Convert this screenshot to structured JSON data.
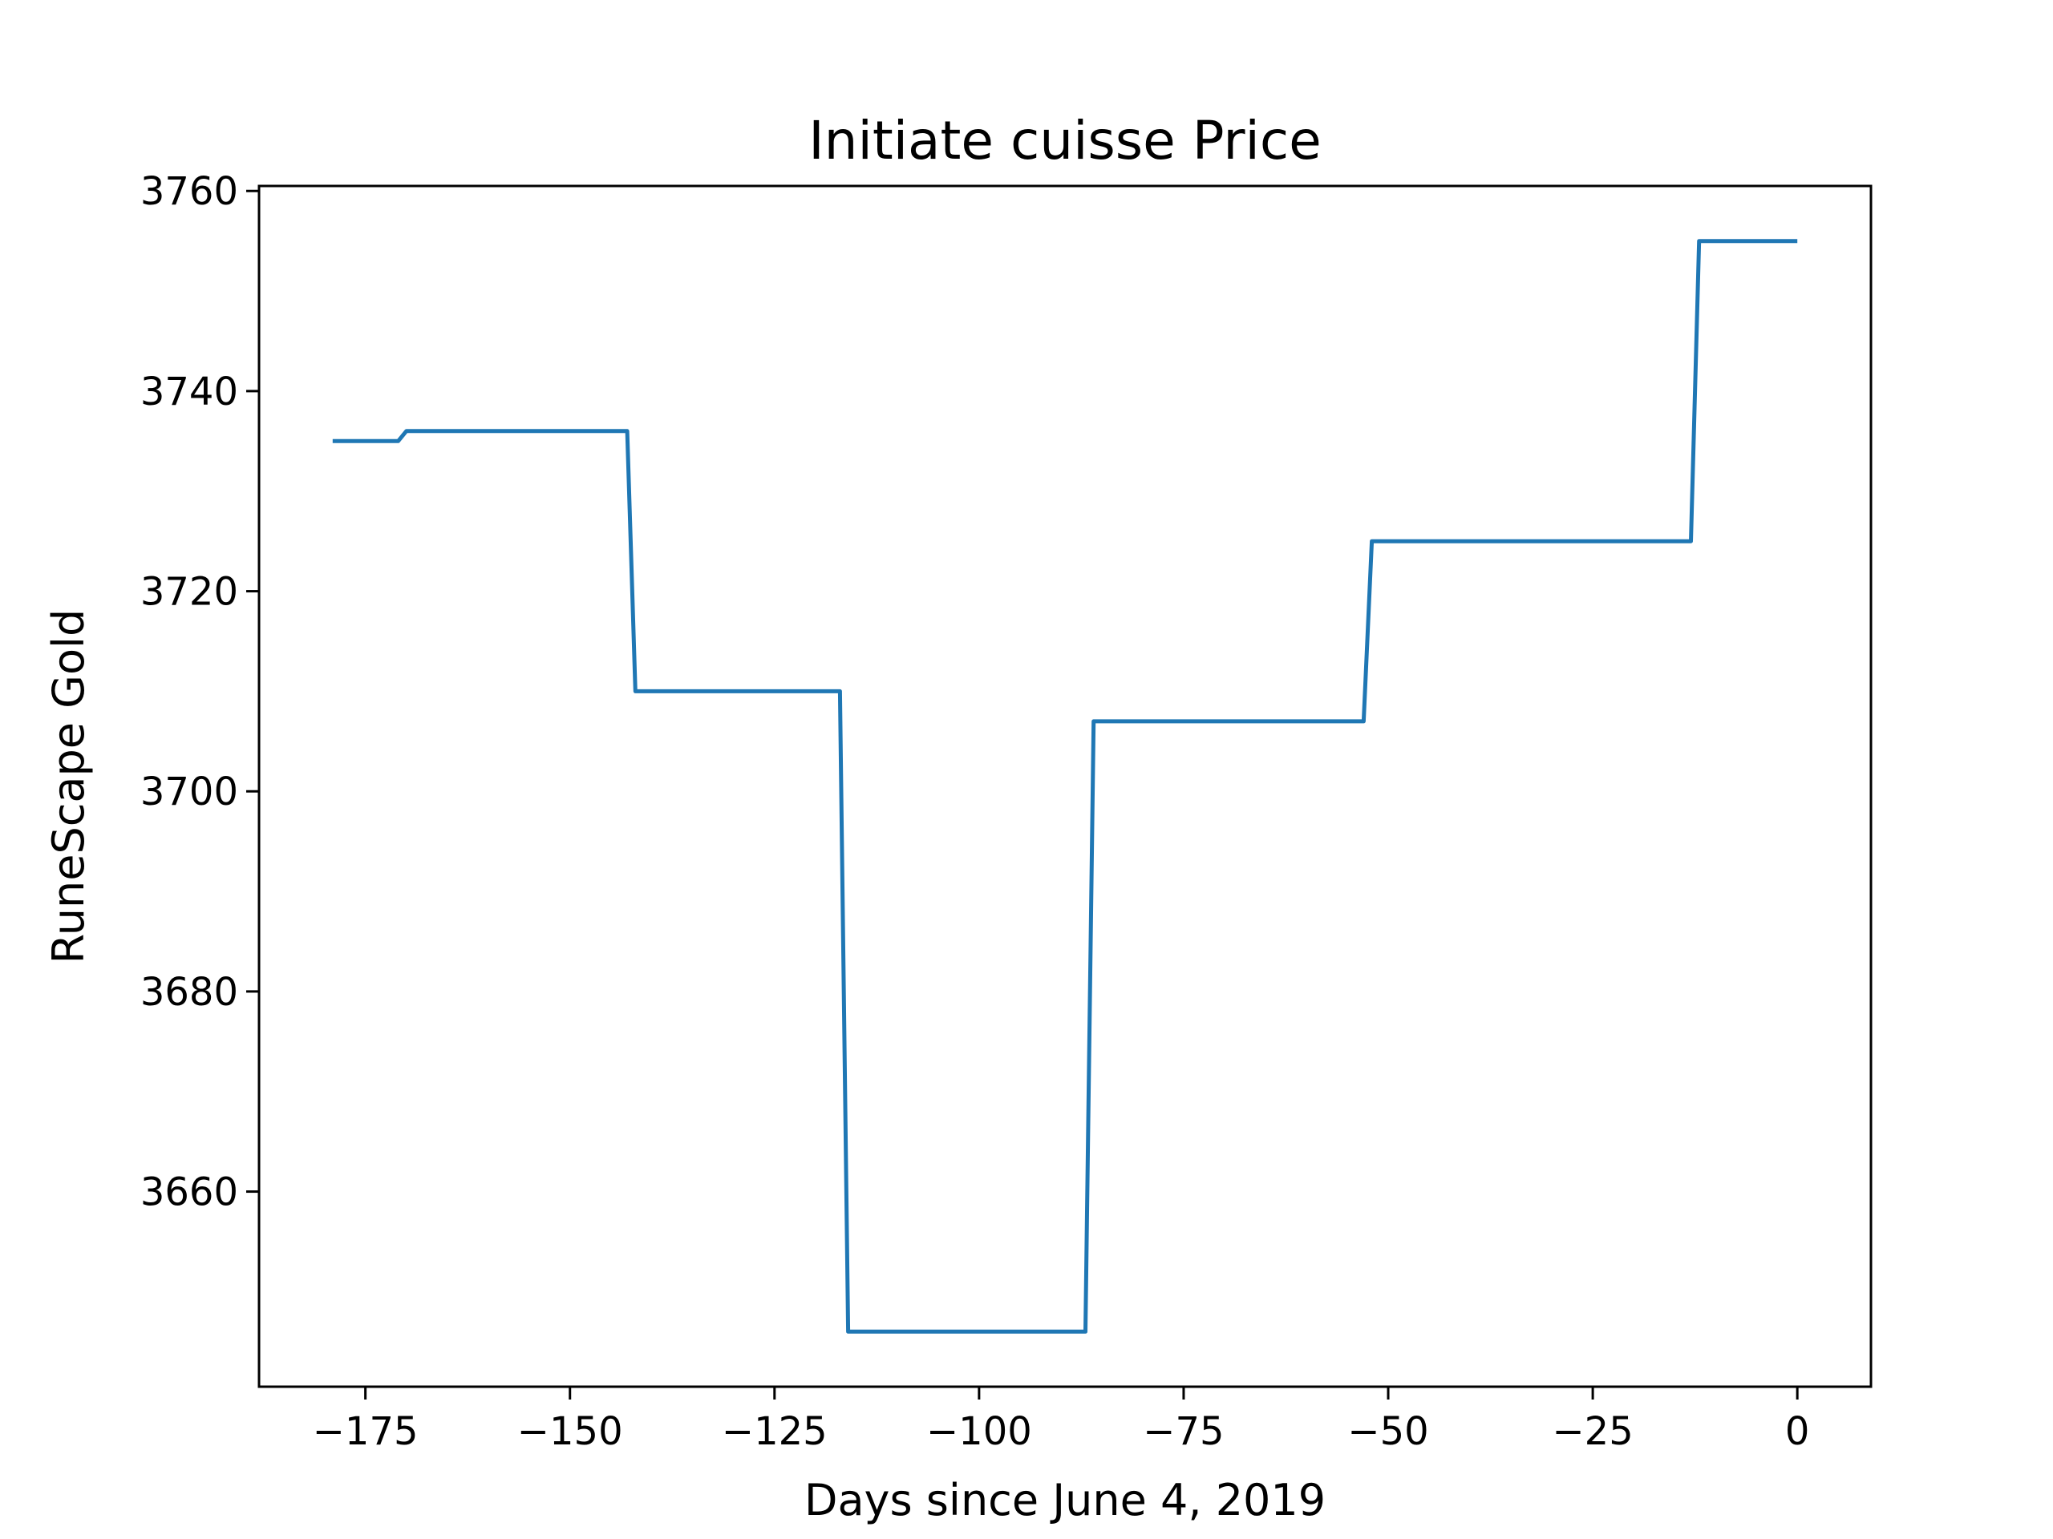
{
  "chart_data": {
    "type": "line",
    "title": "Initiate cuisse Price",
    "xlabel": "Days since June 4, 2019",
    "ylabel": "RuneScape Gold",
    "xlim": [
      -188,
      9
    ],
    "ylim": [
      3640.5,
      3760.5
    ],
    "xticks": [
      -175,
      -150,
      -125,
      -100,
      -75,
      -50,
      -25,
      0
    ],
    "xtick_labels": [
      "−175",
      "−150",
      "−125",
      "−100",
      "−75",
      "−50",
      "−25",
      "0"
    ],
    "yticks": [
      3660,
      3680,
      3700,
      3720,
      3740,
      3760
    ],
    "ytick_labels": [
      "3660",
      "3680",
      "3700",
      "3720",
      "3740",
      "3760"
    ],
    "grid": false,
    "color": "#1f77b4",
    "series": [
      {
        "x": [
          -179,
          -171,
          -170,
          -143,
          -142,
          -117,
          -116,
          -87,
          -86,
          -53,
          -52,
          -13,
          -12,
          0
        ],
        "y": [
          3735,
          3735,
          3736,
          3736,
          3710,
          3710,
          3646,
          3646,
          3707,
          3707,
          3725,
          3725,
          3755,
          3755
        ]
      }
    ]
  }
}
